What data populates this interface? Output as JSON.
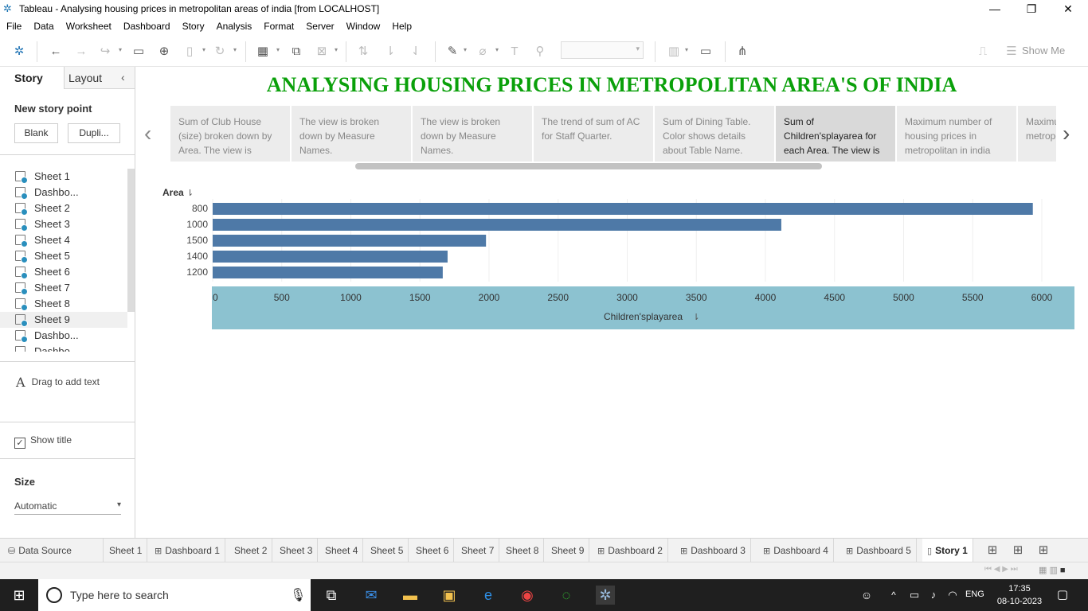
{
  "window": {
    "title": "Tableau - Analysing housing prices in metropolitan areas of india [from LOCALHOST]"
  },
  "menu": [
    "File",
    "Data",
    "Worksheet",
    "Dashboard",
    "Story",
    "Analysis",
    "Format",
    "Server",
    "Window",
    "Help"
  ],
  "toolbar": {
    "show_me": "Show Me"
  },
  "left_panel": {
    "tab_story": "Story",
    "tab_layout": "Layout",
    "new_story_point": "New story point",
    "blank_button": "Blank",
    "duplicate_button": "Dupli...",
    "sheets": [
      "Sheet 1",
      "Dashbo...",
      "Sheet 2",
      "Sheet 3",
      "Sheet 4",
      "Sheet 5",
      "Sheet 6",
      "Sheet 7",
      "Sheet 8",
      "Sheet 9",
      "Dashbo...",
      "Dashbo..."
    ],
    "drag_to_add_text": "Drag to add text",
    "show_title": "Show title",
    "size_label": "Size",
    "size_value": "Automatic"
  },
  "story": {
    "title": "ANALYSING HOUSING PRICES IN METROPOLITAN AREA'S OF INDIA",
    "points": [
      "Sum of Club House (size) broken down by Area. The view is",
      "The view is broken down by Measure Names.",
      "The view is broken down by Measure Names.",
      "The trend of sum of AC for Staff Quarter.",
      "Sum of Dining Table. Color shows details about Table Name.",
      "Sum of Children'splayarea for each Area. The view is",
      "Maximum number of housing prices in metropolitan in india",
      "Maximum housing metropo"
    ],
    "active_point": 5
  },
  "chart_data": {
    "type": "bar",
    "orientation": "horizontal",
    "categories": [
      "800",
      "1000",
      "1500",
      "1400",
      "1200"
    ],
    "values": [
      5935,
      4115,
      1978,
      1700,
      1665
    ],
    "ylabel": "Area",
    "xlabel": "Children'splayarea",
    "xlim": [
      0,
      6000
    ],
    "xticks": [
      0,
      500,
      1000,
      1500,
      2000,
      2500,
      3000,
      3500,
      4000,
      4500,
      5000,
      5500,
      6000
    ],
    "bar_color": "#4e79a7",
    "axis_band_color": "#8cc2d0",
    "grid": true
  },
  "sheet_tabs": [
    "Data Source",
    "Sheet 1",
    "Dashboard 1",
    "Sheet 2",
    "Sheet 3",
    "Sheet 4",
    "Sheet 5",
    "Sheet 6",
    "Sheet 7",
    "Sheet 8",
    "Sheet 9",
    "Dashboard 2",
    "Dashboard 3",
    "Dashboard 4",
    "Dashboard 5",
    "Story 1"
  ],
  "taskbar": {
    "search_placeholder": "Type here to search",
    "lang": "ENG",
    "time": "17:35",
    "date": "08-10-2023"
  }
}
